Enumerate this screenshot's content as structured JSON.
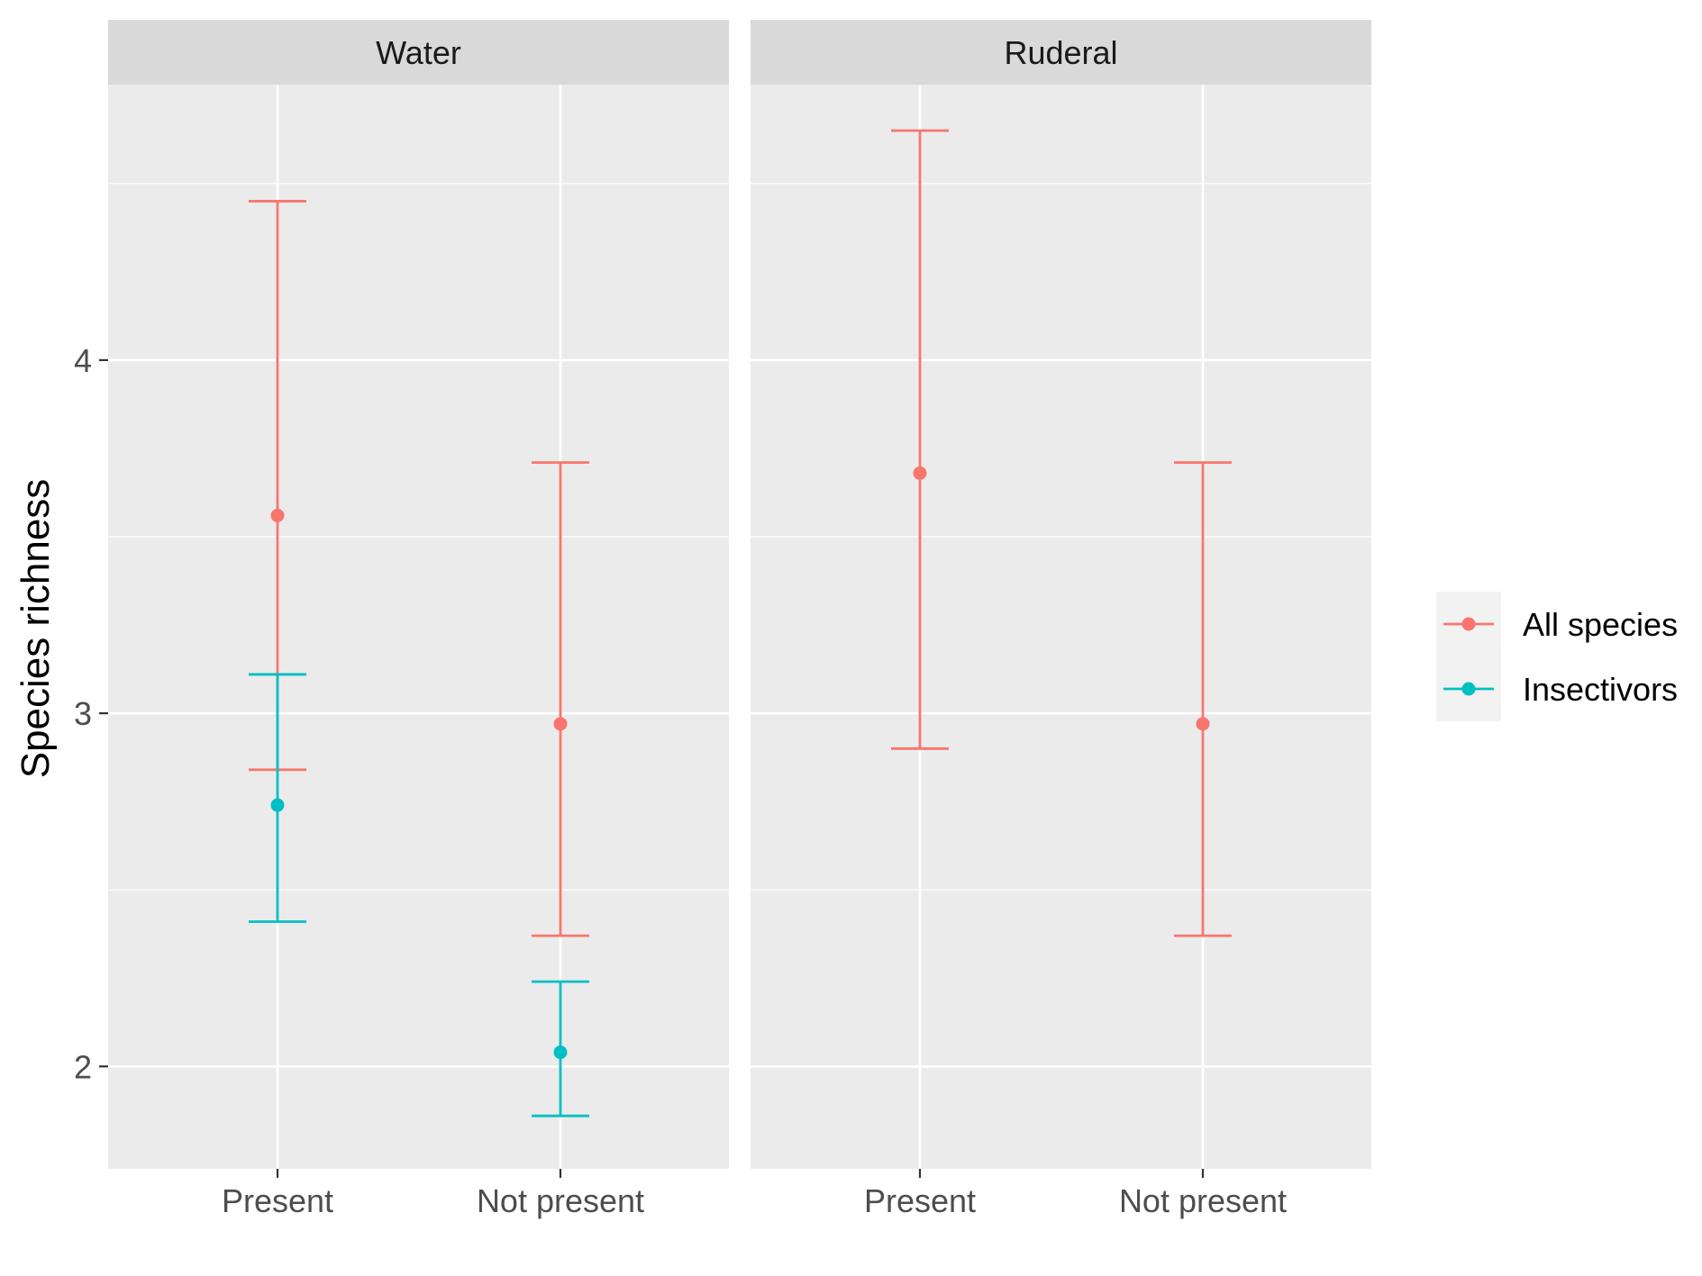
{
  "chart_data": {
    "type": "errorbar",
    "ylabel": "Species richness",
    "xlabel": "",
    "ylim": [
      1.71,
      4.78
    ],
    "y_major_ticks": [
      2,
      3,
      4
    ],
    "y_minor_ticks": [
      2.5,
      3.5,
      4.5
    ],
    "categories": [
      "Present",
      "Not present"
    ],
    "grid": true,
    "legend_position": "right",
    "colors": {
      "All species": "#F8766D",
      "Insectivors": "#00BFC4"
    },
    "legend": [
      {
        "name": "All species",
        "color": "#F8766D"
      },
      {
        "name": "Insectivors",
        "color": "#00BFC4"
      }
    ],
    "panels": [
      {
        "label": "Water",
        "series": [
          {
            "name": "All species",
            "points": [
              {
                "x": "Present",
                "y": 3.56,
                "ymin": 2.84,
                "ymax": 4.45
              },
              {
                "x": "Not present",
                "y": 2.97,
                "ymin": 2.37,
                "ymax": 3.71
              }
            ]
          },
          {
            "name": "Insectivors",
            "points": [
              {
                "x": "Present",
                "y": 2.74,
                "ymin": 2.41,
                "ymax": 3.11
              },
              {
                "x": "Not present",
                "y": 2.04,
                "ymin": 1.86,
                "ymax": 2.24
              }
            ]
          }
        ]
      },
      {
        "label": "Ruderal",
        "series": [
          {
            "name": "All species",
            "points": [
              {
                "x": "Present",
                "y": 3.68,
                "ymin": 2.9,
                "ymax": 4.65
              },
              {
                "x": "Not present",
                "y": 2.97,
                "ymin": 2.37,
                "ymax": 3.71
              }
            ]
          }
        ]
      }
    ]
  }
}
